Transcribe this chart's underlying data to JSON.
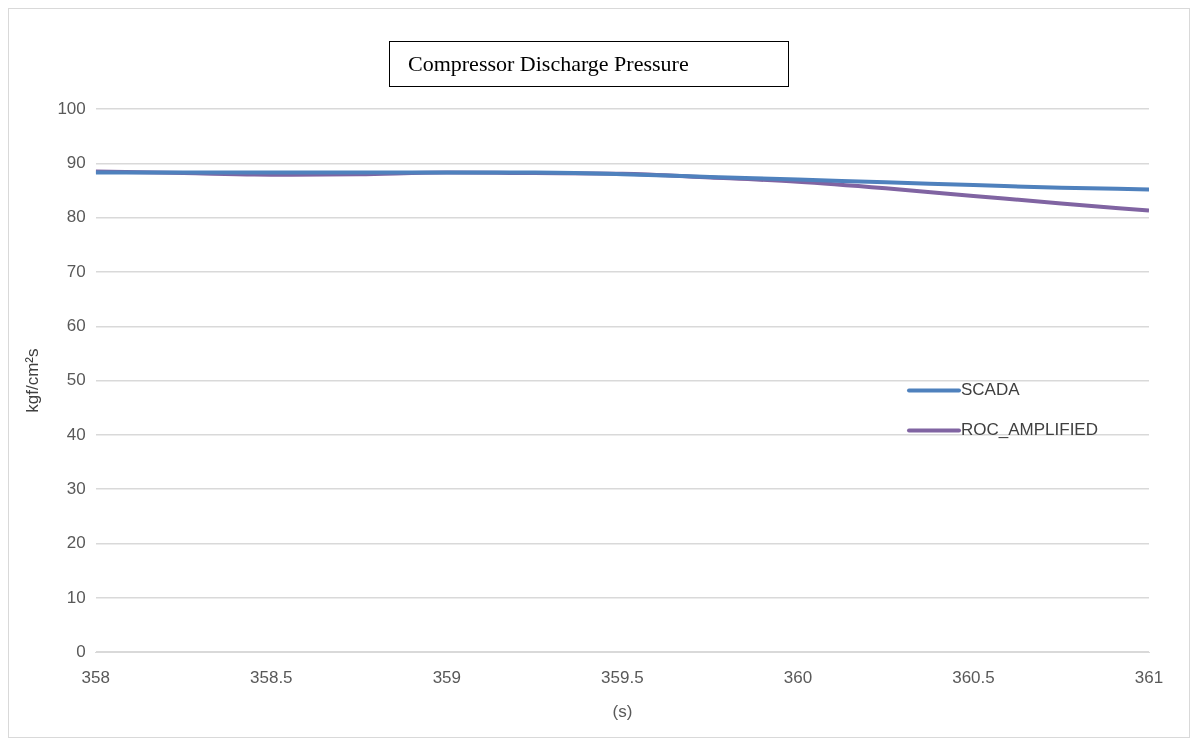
{
  "chart_data": {
    "type": "line",
    "title": "Compressor Discharge Pressure",
    "xlabel": "(s)",
    "ylabel": "kgf/cm²s",
    "x": [
      358,
      358.25,
      358.5,
      358.75,
      359,
      359.25,
      359.5,
      359.75,
      360,
      360.25,
      360.5,
      360.75,
      361
    ],
    "series": [
      {
        "name": "SCADA",
        "color": "#4f81bd",
        "values": [
          88.3,
          88.3,
          88.3,
          88.3,
          88.3,
          88.3,
          88.0,
          87.5,
          87.0,
          86.5,
          86.0,
          85.5,
          85.2
        ]
      },
      {
        "name": "ROC_AMPLIFIED",
        "color": "#8064a2",
        "values": [
          88.5,
          88.2,
          87.9,
          88.0,
          88.3,
          88.2,
          88.1,
          87.4,
          86.6,
          85.4,
          84.0,
          82.6,
          81.3
        ]
      }
    ],
    "xlim": [
      358,
      361
    ],
    "xticks": [
      358,
      358.5,
      359,
      359.5,
      360,
      360.5,
      361
    ],
    "ylim": [
      0,
      100
    ],
    "yticks": [
      0,
      10,
      20,
      30,
      40,
      50,
      60,
      70,
      80,
      90,
      100
    ],
    "grid": "y",
    "legend": "right",
    "marker": "none",
    "line_style": "solid"
  }
}
